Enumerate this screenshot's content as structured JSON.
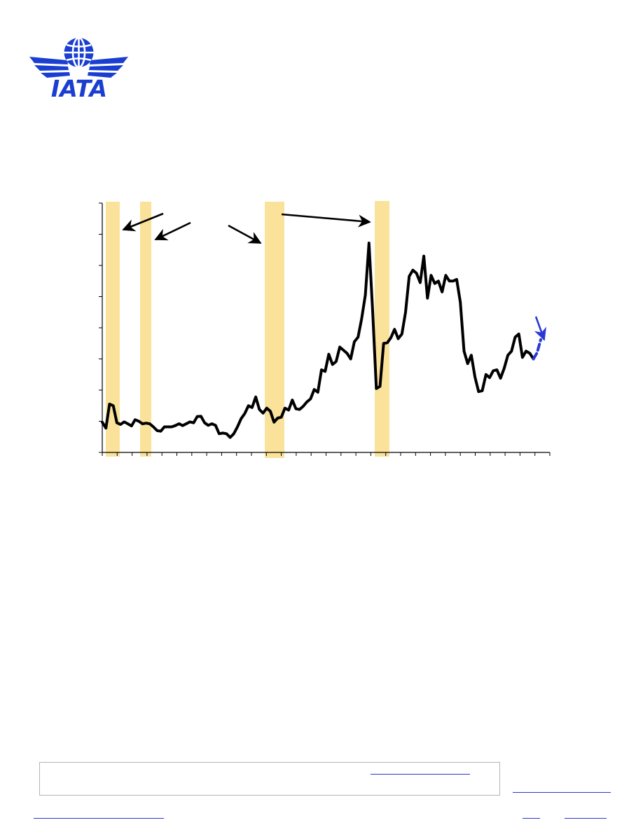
{
  "logo": {
    "text": "IATA",
    "color": "#1a3fd0"
  },
  "colors": {
    "line": "#000000",
    "forecast": "#2a39d6",
    "recession": "#fbe29a",
    "axis": "#000000",
    "link": "#2a39c9"
  },
  "chart_data": {
    "type": "line",
    "title": "",
    "xlabel": "",
    "ylabel": "",
    "ylim": [
      0,
      8
    ],
    "grid": false,
    "recession_bands": true,
    "annotation_arrows": 5,
    "series": [
      {
        "values": [
          0.97,
          0.78,
          1.55,
          1.5,
          0.95,
          0.9,
          0.98,
          0.92,
          0.85,
          1.05,
          1.0,
          0.92,
          0.94,
          0.92,
          0.82,
          0.7,
          0.68,
          0.82,
          0.82,
          0.82,
          0.86,
          0.92,
          0.86,
          0.92,
          0.98,
          0.95,
          1.15,
          1.16,
          0.95,
          0.87,
          0.92,
          0.87,
          0.6,
          0.62,
          0.6,
          0.48,
          0.6,
          0.82,
          1.08,
          1.25,
          1.5,
          1.44,
          1.78,
          1.38,
          1.26,
          1.42,
          1.32,
          0.97,
          1.1,
          1.13,
          1.42,
          1.36,
          1.68,
          1.4,
          1.38,
          1.48,
          1.62,
          1.72,
          2.02,
          1.93,
          2.65,
          2.6,
          3.15,
          2.82,
          2.92,
          3.38,
          3.28,
          3.18,
          3.0,
          3.55,
          3.7,
          4.3,
          5.05,
          6.72,
          4.55,
          2.05,
          2.12,
          3.5,
          3.52,
          3.68,
          3.95,
          3.65,
          3.8,
          4.5,
          5.65,
          5.85,
          5.75,
          5.45,
          6.3,
          4.95,
          5.68,
          5.42,
          5.5,
          5.15,
          5.68,
          5.5,
          5.5,
          5.55,
          4.82,
          3.25,
          2.85,
          3.12,
          2.42,
          1.95,
          1.98,
          2.5,
          2.4,
          2.62,
          2.65,
          2.38,
          2.7,
          3.12,
          3.25,
          3.7,
          3.8,
          3.05,
          3.25,
          3.18,
          3.0
        ]
      }
    ],
    "forecast": {
      "values": [
        3.0,
        3.2,
        3.62
      ]
    }
  },
  "footer": {}
}
